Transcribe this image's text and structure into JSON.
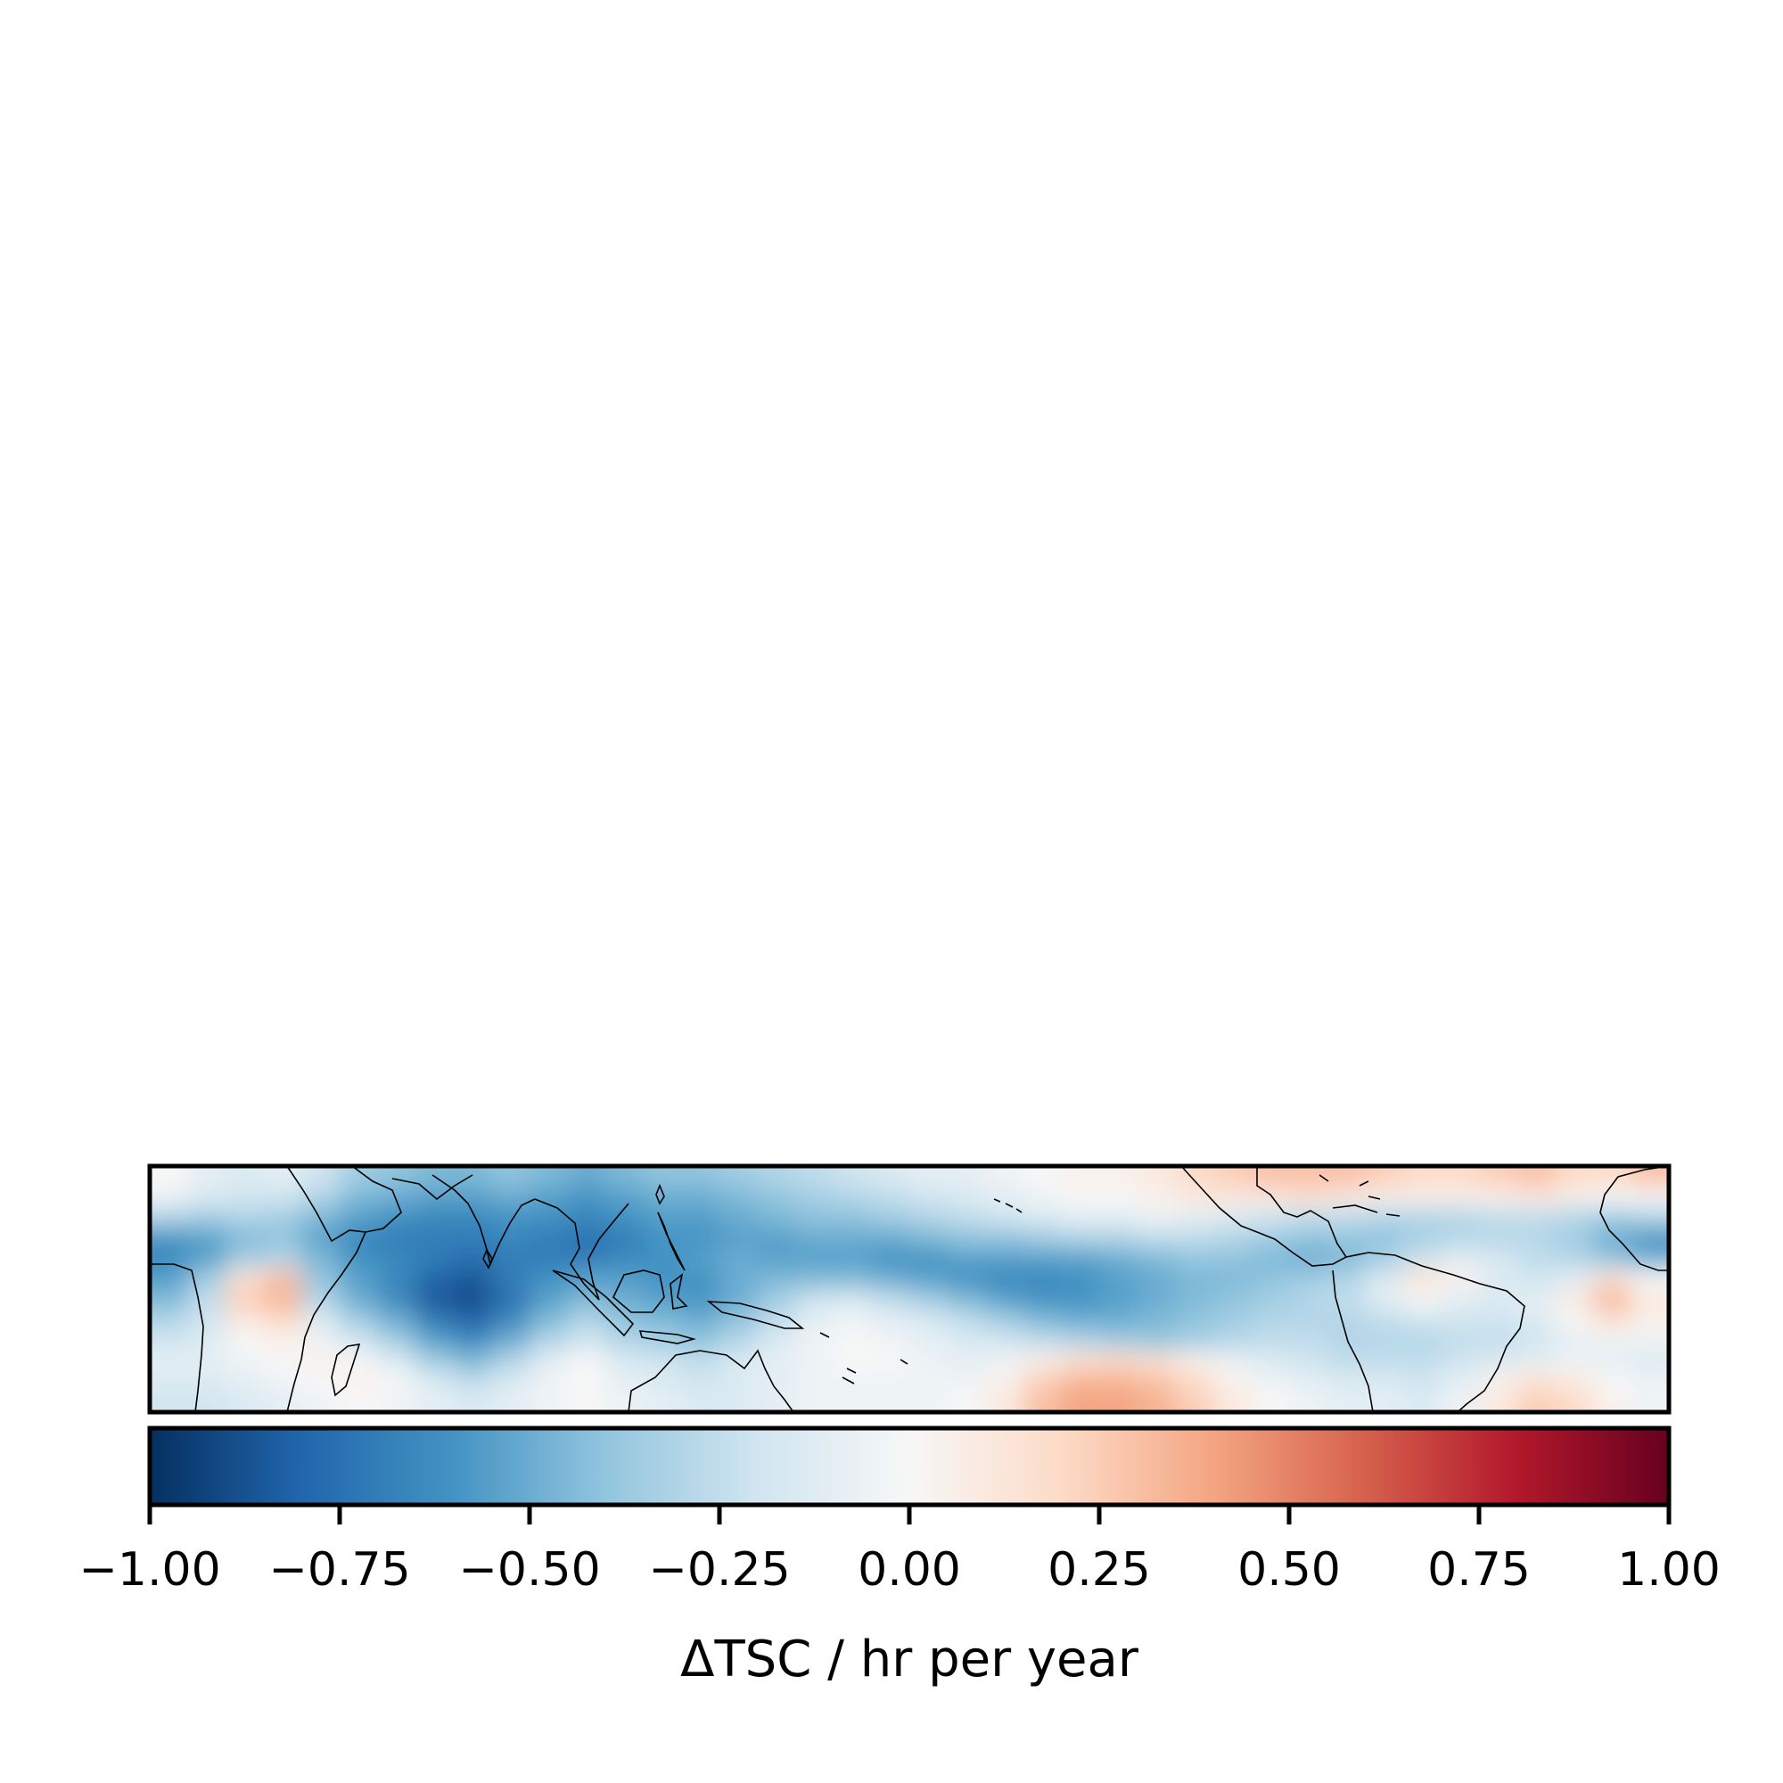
{
  "chart_data": {
    "type": "heatmap",
    "title": "",
    "map": {
      "description_kind": "tropical band map with coastlines",
      "grid_cols": 40,
      "grid_rows": 12,
      "values": [
        [
          0.0,
          -0.1,
          -0.15,
          -0.1,
          -0.2,
          -0.35,
          -0.4,
          -0.45,
          -0.45,
          -0.4,
          -0.45,
          -0.5,
          -0.45,
          -0.4,
          -0.4,
          -0.35,
          -0.3,
          -0.25,
          -0.2,
          -0.15,
          -0.1,
          -0.1,
          -0.05,
          0.0,
          0.05,
          0.05,
          0.1,
          0.2,
          0.25,
          0.3,
          0.3,
          0.3,
          0.25,
          0.2,
          0.2,
          0.25,
          0.3,
          0.2,
          0.2,
          0.3
        ],
        [
          -0.05,
          -0.15,
          -0.2,
          -0.2,
          -0.3,
          -0.45,
          -0.5,
          -0.55,
          -0.55,
          -0.5,
          -0.55,
          -0.6,
          -0.55,
          -0.5,
          -0.5,
          -0.45,
          -0.4,
          -0.35,
          -0.3,
          -0.25,
          -0.2,
          -0.15,
          -0.1,
          -0.05,
          0.0,
          0.0,
          0.05,
          0.1,
          0.1,
          0.1,
          0.15,
          0.1,
          0.05,
          0.05,
          0.05,
          0.05,
          0.1,
          0.05,
          0.0,
          0.0
        ],
        [
          -0.3,
          -0.35,
          -0.3,
          -0.35,
          -0.45,
          -0.55,
          -0.6,
          -0.65,
          -0.65,
          -0.6,
          -0.6,
          -0.65,
          -0.6,
          -0.55,
          -0.55,
          -0.5,
          -0.45,
          -0.4,
          -0.4,
          -0.35,
          -0.3,
          -0.25,
          -0.2,
          -0.15,
          -0.1,
          -0.1,
          -0.05,
          -0.1,
          -0.15,
          -0.2,
          -0.25,
          -0.25,
          -0.3,
          -0.3,
          -0.3,
          -0.25,
          -0.25,
          -0.3,
          -0.35,
          -0.3
        ],
        [
          -0.6,
          -0.55,
          -0.45,
          -0.4,
          -0.55,
          -0.65,
          -0.7,
          -0.7,
          -0.7,
          -0.65,
          -0.7,
          -0.75,
          -0.7,
          -0.6,
          -0.6,
          -0.55,
          -0.55,
          -0.5,
          -0.5,
          -0.5,
          -0.45,
          -0.4,
          -0.4,
          -0.35,
          -0.3,
          -0.3,
          -0.25,
          -0.25,
          -0.3,
          -0.35,
          -0.4,
          -0.4,
          -0.4,
          -0.35,
          -0.3,
          -0.3,
          -0.3,
          -0.35,
          -0.5,
          -0.6
        ],
        [
          -0.65,
          -0.55,
          -0.35,
          -0.3,
          -0.45,
          -0.6,
          -0.65,
          -0.7,
          -0.75,
          -0.7,
          -0.7,
          -0.7,
          -0.65,
          -0.6,
          -0.55,
          -0.5,
          -0.55,
          -0.55,
          -0.55,
          -0.6,
          -0.6,
          -0.55,
          -0.55,
          -0.55,
          -0.55,
          -0.5,
          -0.45,
          -0.4,
          -0.4,
          -0.45,
          -0.5,
          -0.45,
          -0.35,
          -0.2,
          -0.1,
          -0.15,
          -0.25,
          -0.3,
          -0.4,
          -0.5
        ],
        [
          -0.55,
          -0.35,
          0.15,
          0.3,
          -0.4,
          -0.55,
          -0.65,
          -0.8,
          -0.85,
          -0.7,
          -0.6,
          -0.55,
          -0.55,
          -0.6,
          -0.6,
          -0.5,
          -0.45,
          -0.45,
          -0.45,
          -0.5,
          -0.55,
          -0.6,
          -0.65,
          -0.65,
          -0.6,
          -0.55,
          -0.5,
          -0.45,
          -0.45,
          -0.4,
          -0.35,
          -0.3,
          -0.15,
          0.15,
          0.05,
          -0.15,
          -0.2,
          -0.1,
          0.15,
          0.0
        ],
        [
          -0.45,
          -0.25,
          0.25,
          0.35,
          -0.3,
          -0.5,
          -0.65,
          -0.85,
          -0.9,
          -0.75,
          -0.55,
          -0.45,
          -0.5,
          -0.55,
          -0.6,
          -0.5,
          -0.35,
          -0.2,
          -0.15,
          -0.25,
          -0.35,
          -0.45,
          -0.55,
          -0.6,
          -0.6,
          -0.55,
          -0.5,
          -0.45,
          -0.4,
          -0.35,
          -0.3,
          -0.25,
          -0.1,
          0.0,
          -0.1,
          -0.15,
          -0.1,
          0.1,
          0.35,
          0.1
        ],
        [
          -0.3,
          -0.2,
          0.1,
          0.2,
          -0.15,
          -0.35,
          -0.5,
          -0.7,
          -0.8,
          -0.65,
          -0.45,
          -0.3,
          -0.4,
          -0.45,
          -0.5,
          -0.4,
          -0.25,
          -0.1,
          -0.05,
          -0.1,
          -0.15,
          -0.25,
          -0.35,
          -0.45,
          -0.5,
          -0.5,
          -0.45,
          -0.4,
          -0.35,
          -0.3,
          -0.3,
          -0.3,
          -0.25,
          -0.2,
          -0.2,
          -0.2,
          -0.15,
          0.0,
          0.15,
          0.05
        ],
        [
          -0.2,
          -0.15,
          0.0,
          0.05,
          -0.05,
          -0.2,
          -0.35,
          -0.55,
          -0.65,
          -0.5,
          -0.3,
          -0.2,
          -0.3,
          -0.35,
          -0.4,
          -0.3,
          -0.15,
          -0.05,
          0.0,
          -0.05,
          -0.1,
          -0.15,
          -0.2,
          -0.25,
          -0.3,
          -0.35,
          -0.4,
          -0.35,
          -0.3,
          -0.25,
          -0.25,
          -0.3,
          -0.3,
          -0.3,
          -0.25,
          -0.25,
          -0.2,
          -0.1,
          -0.05,
          -0.05
        ],
        [
          -0.1,
          -0.1,
          -0.05,
          0.0,
          0.05,
          0.0,
          -0.15,
          -0.35,
          -0.45,
          -0.3,
          -0.1,
          0.0,
          -0.15,
          -0.2,
          -0.25,
          -0.15,
          -0.1,
          -0.05,
          0.0,
          0.0,
          -0.05,
          -0.1,
          -0.05,
          0.05,
          0.15,
          0.2,
          0.15,
          0.05,
          -0.05,
          -0.15,
          -0.2,
          -0.25,
          -0.25,
          -0.25,
          -0.2,
          -0.15,
          -0.1,
          -0.05,
          -0.1,
          -0.15
        ],
        [
          -0.15,
          -0.15,
          -0.1,
          -0.05,
          0.0,
          0.05,
          0.0,
          -0.15,
          -0.25,
          -0.15,
          -0.05,
          0.0,
          -0.1,
          -0.15,
          -0.2,
          -0.15,
          -0.1,
          -0.05,
          -0.05,
          -0.05,
          -0.05,
          -0.05,
          0.05,
          0.25,
          0.35,
          0.35,
          0.3,
          0.2,
          0.05,
          -0.05,
          -0.1,
          -0.15,
          -0.15,
          -0.2,
          -0.1,
          0.05,
          0.15,
          0.1,
          0.0,
          -0.05
        ],
        [
          -0.2,
          -0.2,
          -0.15,
          -0.1,
          -0.05,
          0.0,
          -0.05,
          -0.1,
          -0.15,
          -0.1,
          -0.05,
          0.0,
          -0.05,
          -0.1,
          -0.15,
          -0.15,
          -0.1,
          -0.05,
          -0.05,
          -0.05,
          -0.05,
          0.0,
          0.1,
          0.3,
          0.4,
          0.4,
          0.35,
          0.25,
          0.1,
          0.0,
          -0.05,
          -0.1,
          -0.1,
          -0.15,
          -0.05,
          0.1,
          0.25,
          0.2,
          0.05,
          -0.05
        ]
      ]
    },
    "colorbar": {
      "colormap": "RdBu_r",
      "vmin": -1.0,
      "vmax": 1.0,
      "colors": [
        "#053061",
        "#2166ac",
        "#4393c3",
        "#92c5de",
        "#d1e5f0",
        "#f7f7f7",
        "#fddbc7",
        "#f4a582",
        "#d6604d",
        "#b2182b",
        "#67001f"
      ],
      "ticks": [
        -1.0,
        -0.75,
        -0.5,
        -0.25,
        0.0,
        0.25,
        0.5,
        0.75,
        1.0
      ],
      "tick_labels": [
        "−1.00",
        "−0.75",
        "−0.50",
        "−0.25",
        "0.00",
        "0.25",
        "0.50",
        "0.75",
        "1.00"
      ],
      "label": "ΔTSC / hr per year"
    }
  }
}
